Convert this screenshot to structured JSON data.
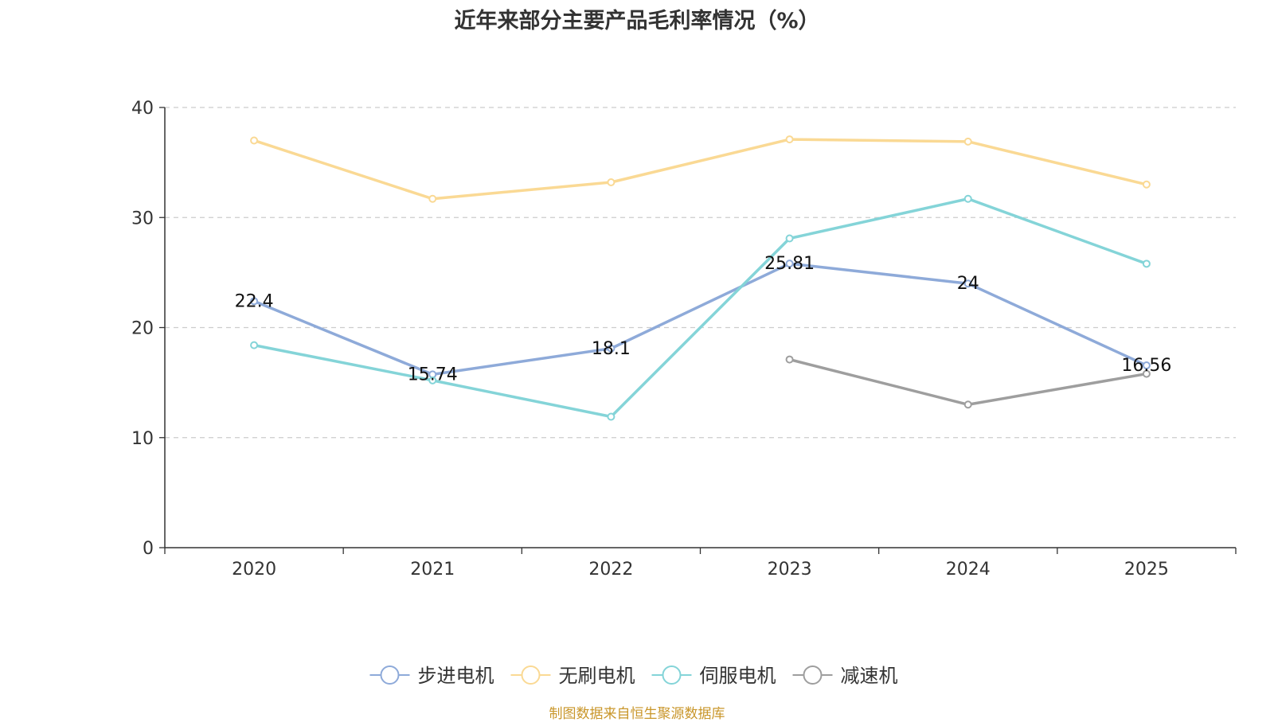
{
  "chart_data": {
    "type": "line",
    "title": "近年来部分主要产品毛利率情况（%）",
    "categories": [
      "2020",
      "2021",
      "2022",
      "2023",
      "2024",
      "2025"
    ],
    "ylim": [
      0,
      40
    ],
    "yticks": [
      0,
      10,
      20,
      30,
      40
    ],
    "grid": true,
    "legend_position": "bottom-center",
    "series": [
      {
        "name": "步进电机",
        "color": "#8eaad9",
        "values": [
          22.4,
          15.74,
          18.1,
          25.81,
          24,
          16.56
        ],
        "labels": [
          "22.4",
          "15.74",
          "18.1",
          "25.81",
          "24",
          "16.56"
        ]
      },
      {
        "name": "无刷电机",
        "color": "#fad994",
        "values": [
          37.0,
          31.7,
          33.2,
          37.1,
          36.9,
          33.0
        ],
        "labels": null
      },
      {
        "name": "伺服电机",
        "color": "#84d4d8",
        "values": [
          18.4,
          15.2,
          11.9,
          28.1,
          31.7,
          25.8
        ],
        "labels": null
      },
      {
        "name": "减速机",
        "color": "#9e9e9e",
        "values": [
          null,
          null,
          null,
          17.1,
          13.0,
          15.8
        ],
        "labels": null
      }
    ]
  },
  "source_note": "制图数据来自恒生聚源数据库"
}
